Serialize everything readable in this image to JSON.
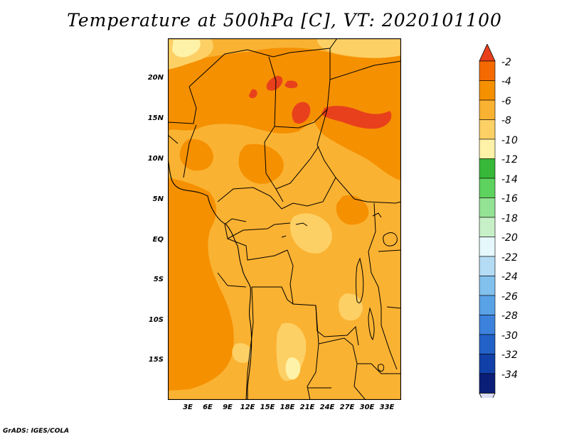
{
  "title": "Temperature at 500hPa [C], VT: 2020101100",
  "credit": "GrADS: IGES/COLA",
  "map": {
    "lat_ticks": [
      "20N",
      "15N",
      "10N",
      "5N",
      "EQ",
      "5S",
      "10S",
      "15S"
    ],
    "lon_ticks": [
      "3E",
      "6E",
      "9E",
      "12E",
      "15E",
      "18E",
      "21E",
      "24E",
      "27E",
      "30E",
      "33E"
    ],
    "palette": {
      "t_minus_2": "#e8401c",
      "t_minus_4": "#f59000",
      "t_minus_6": "#fab232",
      "t_minus_8": "#fdd065",
      "t_minus_10": "#fef2a8"
    }
  },
  "colorbar": {
    "labels": [
      "-2",
      "-4",
      "-6",
      "-8",
      "-10",
      "-12",
      "-14",
      "-16",
      "-18",
      "-20",
      "-22",
      "-24",
      "-26",
      "-28",
      "-30",
      "-32",
      "-34"
    ],
    "colors": [
      "#e8401c",
      "#f56a00",
      "#f59000",
      "#fab232",
      "#fdd065",
      "#fef2a8",
      "#38b838",
      "#5ed25e",
      "#94e294",
      "#c8f0c8",
      "#e6f8fb",
      "#b4dcf4",
      "#82c0ee",
      "#5aa2e6",
      "#3c82dc",
      "#2262c8",
      "#1040a8",
      "#0a1e78",
      "#dcdcf4"
    ]
  }
}
